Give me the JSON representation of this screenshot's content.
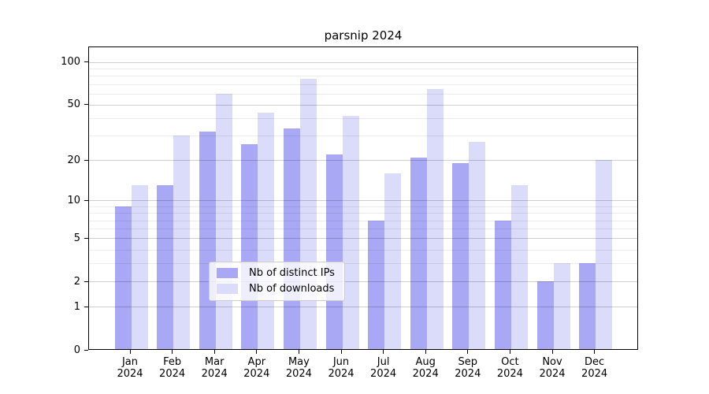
{
  "title": "parsnip 2024",
  "chart_data": {
    "type": "bar",
    "title": "parsnip 2024",
    "x_tick_labels": [
      {
        "month": "Jan",
        "year": "2024"
      },
      {
        "month": "Feb",
        "year": "2024"
      },
      {
        "month": "Mar",
        "year": "2024"
      },
      {
        "month": "Apr",
        "year": "2024"
      },
      {
        "month": "May",
        "year": "2024"
      },
      {
        "month": "Jun",
        "year": "2024"
      },
      {
        "month": "Jul",
        "year": "2024"
      },
      {
        "month": "Aug",
        "year": "2024"
      },
      {
        "month": "Sep",
        "year": "2024"
      },
      {
        "month": "Oct",
        "year": "2024"
      },
      {
        "month": "Nov",
        "year": "2024"
      },
      {
        "month": "Dec",
        "year": "2024"
      }
    ],
    "series": [
      {
        "name": "Nb of distinct IPs",
        "color": "#a8a8f4",
        "values": [
          9,
          13,
          32,
          26,
          34,
          22,
          7,
          21,
          19,
          7,
          2,
          3
        ]
      },
      {
        "name": "Nb of downloads",
        "color": "#dbdbfa",
        "values": [
          13,
          30,
          60,
          44,
          76,
          42,
          16,
          65,
          27,
          13,
          3,
          20
        ]
      }
    ],
    "y_scale": "symlog-log1p",
    "y_axis_ticks": [
      0,
      1,
      2,
      5,
      10,
      20,
      50,
      100
    ],
    "y_minor_gridlines": [
      3,
      4,
      6,
      7,
      8,
      9,
      30,
      40,
      60,
      70,
      80,
      90
    ],
    "ylim": [
      0,
      130
    ],
    "grid": true,
    "legend_position": "lower center",
    "colors": {
      "axis": "#000000",
      "background": "#ffffff",
      "grid_major": "#cccccc",
      "grid_minor": "#ececec"
    }
  }
}
